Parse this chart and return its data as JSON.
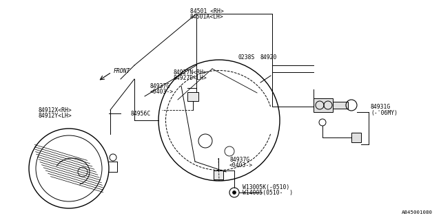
{
  "bg_color": "#ffffff",
  "lc": "#000000",
  "tc": "#000000",
  "catalog": "A845001080",
  "fs": 5.8,
  "labels": {
    "part1": "84501 <RH>",
    "part1a": "84501A<LH>",
    "part2": "0238S",
    "part3": "84920",
    "part4": "84927N<RH>",
    "part4a": "84927D<LH>",
    "part5u": "84937G",
    "part5ua": "<0403->",
    "part5l": "84937G",
    "part5la": "<0403->",
    "part6": "84956C",
    "part7": "84912X<RH>",
    "part7a": "84912Y<LH>",
    "part8": "84931G",
    "part8a": "(-'06MY)",
    "part9": "W13005K(-0510)",
    "part9a": "W14005(0510-  )",
    "front": "FRONT"
  }
}
